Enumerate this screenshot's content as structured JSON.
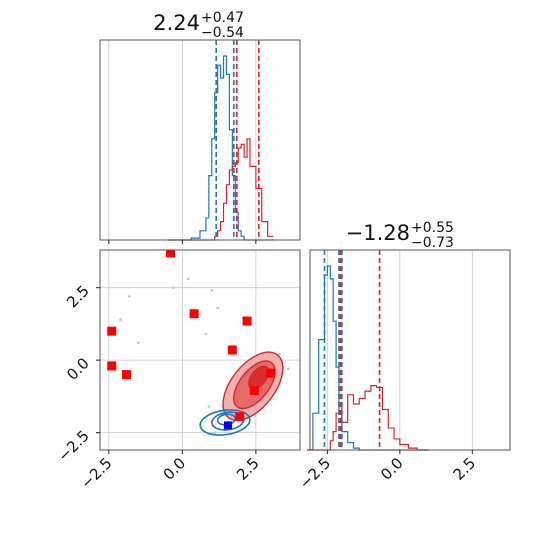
{
  "chart_data": {
    "type": "corner",
    "colors": {
      "blue": "#1f77b4",
      "red": "#d62728",
      "marker_blue": "#0000ff",
      "marker_red": "#ff0000",
      "grid": "#c8c8c8",
      "scatter": "#b4c8e6"
    },
    "grid": true,
    "titles": [
      {
        "value": "2.24",
        "plus": "+0.47",
        "minus": "−0.54"
      },
      {
        "value": "−1.28",
        "plus": "+0.55",
        "minus": "−0.73"
      }
    ],
    "x_ticks": [
      "−2.5",
      "0.0",
      "2.5"
    ],
    "y_ticks": [
      "2.5",
      "0.0",
      "−2.5"
    ],
    "x_tick_values": [
      -2.5,
      0,
      2.5
    ],
    "y_tick_values": [
      2.5,
      0,
      -2.5
    ],
    "param0_range": [
      -2.8,
      4.0
    ],
    "param1_range": [
      -3.1,
      3.8
    ],
    "hist_x_bins": [
      -0.5,
      0.3,
      0.6,
      0.8,
      0.9,
      1.0,
      1.1,
      1.2,
      1.3,
      1.4,
      1.5,
      1.6,
      1.7,
      1.8,
      1.9,
      2.0,
      2.1,
      2.2,
      2.3,
      2.5,
      2.7,
      2.9,
      3.1
    ],
    "hist_x_blue": [
      0,
      0.01,
      0.05,
      0.12,
      0.35,
      0.55,
      0.8,
      0.95,
      0.88,
      1.0,
      0.9,
      0.6,
      0.35,
      0.15,
      0.05,
      0.02,
      0,
      0,
      0,
      0,
      0,
      0
    ],
    "hist_x_red": [
      0,
      0,
      0,
      0,
      0,
      0,
      0.02,
      0.05,
      0.1,
      0.2,
      0.3,
      0.38,
      0.4,
      0.42,
      0.5,
      0.52,
      0.45,
      0.55,
      0.4,
      0.28,
      0.1,
      0.02
    ],
    "hist_x_blue_lines": [
      1.15,
      1.75,
      1.85
    ],
    "hist_x_red_lines": [
      1.85,
      2.6
    ],
    "hist_y_bins": [
      -3.2,
      -3.0,
      -2.8,
      -2.6,
      -2.5,
      -2.4,
      -2.3,
      -2.2,
      -2.1,
      -2.0,
      -1.8,
      -1.6,
      -1.4,
      -1.2,
      -1.0,
      -0.8,
      -0.6,
      -0.4,
      -0.2,
      0.0,
      0.3,
      0.6,
      1.0
    ],
    "hist_y_blue": [
      0,
      0.2,
      0.6,
      0.95,
      1.0,
      0.93,
      0.7,
      0.45,
      0.25,
      0.1,
      0.04,
      0.01,
      0,
      0,
      0,
      0,
      0,
      0,
      0,
      0,
      0,
      0
    ],
    "hist_y_red": [
      0,
      0,
      0,
      0,
      0,
      0.05,
      0.1,
      0.2,
      0.25,
      0.15,
      0.3,
      0.25,
      0.28,
      0.32,
      0.35,
      0.34,
      0.22,
      0.12,
      0.06,
      0.03,
      0.01,
      0
    ],
    "hist_y_blue_lines": [
      -2.6,
      -2.1,
      -2.0
    ],
    "hist_y_red_lines": [
      -2.05,
      -0.7
    ],
    "red_markers": [
      {
        "x": -0.4,
        "y": 3.7
      },
      {
        "x": -2.4,
        "y": 1.0
      },
      {
        "x": -2.4,
        "y": -0.2
      },
      {
        "x": -1.9,
        "y": -0.5
      },
      {
        "x": 0.4,
        "y": 1.6
      },
      {
        "x": 1.7,
        "y": 0.35
      },
      {
        "x": 2.2,
        "y": 1.35
      },
      {
        "x": 2.45,
        "y": -1.05
      },
      {
        "x": 3.0,
        "y": -0.45
      },
      {
        "x": 1.95,
        "y": -1.95
      }
    ],
    "blue_marker": {
      "x": 1.55,
      "y": -2.25
    },
    "red_contours": [
      {
        "cx": 2.4,
        "cy": -0.9,
        "rx": 1.35,
        "ry": 0.75,
        "angle": -52,
        "fill": "#f1a7a7"
      },
      {
        "cx": 2.45,
        "cy": -0.85,
        "rx": 0.95,
        "ry": 0.5,
        "angle": -52,
        "fill": "#e26262"
      },
      {
        "cx": 2.6,
        "cy": -0.6,
        "rx": 0.45,
        "ry": 0.25,
        "angle": -52,
        "fill": "#d62728"
      }
    ],
    "blue_contours": [
      {
        "cx": 1.45,
        "cy": -2.15,
        "rx": 0.85,
        "ry": 0.42,
        "angle": -8
      },
      {
        "cx": 1.55,
        "cy": -2.1,
        "rx": 0.55,
        "ry": 0.3,
        "angle": -8
      },
      {
        "cx": 1.5,
        "cy": -2.05,
        "rx": 0.3,
        "ry": 0.18,
        "angle": -8
      }
    ],
    "scatter": [
      {
        "x": -2.1,
        "y": 1.4
      },
      {
        "x": -1.8,
        "y": 2.2
      },
      {
        "x": -0.3,
        "y": 2.5
      },
      {
        "x": 0.2,
        "y": 2.8
      },
      {
        "x": 1.0,
        "y": 2.4
      },
      {
        "x": -1.5,
        "y": 0.6
      },
      {
        "x": 0.8,
        "y": 0.9
      },
      {
        "x": 1.2,
        "y": 1.8
      },
      {
        "x": 3.3,
        "y": 0.2
      },
      {
        "x": 3.6,
        "y": -0.3
      },
      {
        "x": 0.9,
        "y": -1.6
      },
      {
        "x": 1.1,
        "y": -2.5
      }
    ]
  }
}
